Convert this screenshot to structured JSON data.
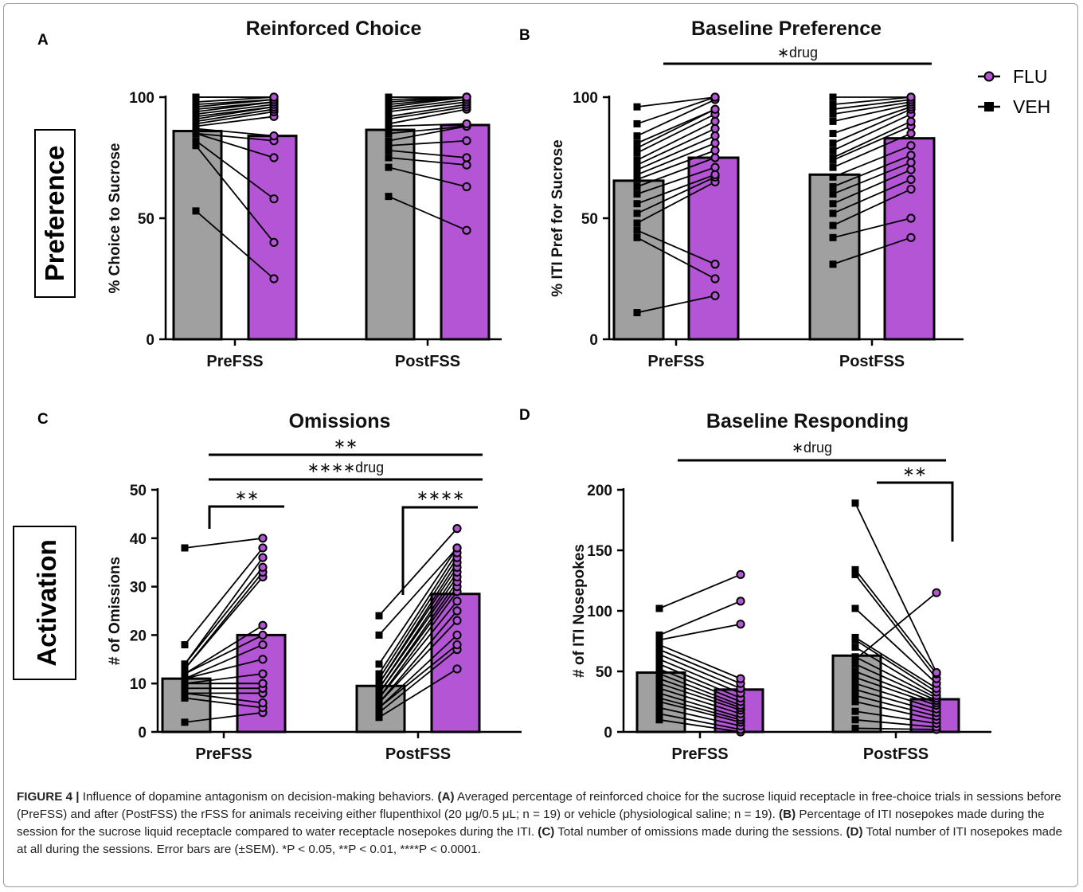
{
  "colors": {
    "veh": "#a0a0a0",
    "flu": "#b455d6",
    "ink": "#000000"
  },
  "row_labels": {
    "top": "Preference",
    "bottom": "Activation"
  },
  "legend": [
    {
      "label": "FLU",
      "marker": "circle",
      "color": "#b455d6"
    },
    {
      "label": "VEH",
      "marker": "square",
      "color": "#000000"
    }
  ],
  "caption": {
    "figure_label": "FIGURE 4 |",
    "lead": " Influence of dopamine antagonism on decision-making behaviors. ",
    "a_label": "(A)",
    "a_text": " Averaged percentage of reinforced choice for the sucrose liquid receptacle in free-choice trials in sessions before (PreFSS) and after (PostFSS) the rFSS for animals receiving either flupenthixol (20 μg/0.5 μL; n = 19) or vehicle (physiological saline; n = 19). ",
    "b_label": "(B)",
    "b_text": " Percentage of ITI nosepokes made during the session for the sucrose liquid receptacle compared to water receptacle nosepokes during the ITI. ",
    "c_label": "(C)",
    "c_text": " Total number of omissions made during the sessions. ",
    "d_label": "(D)",
    "d_text": " Total number of ITI nosepokes made at all during the sessions. Error bars are (±SEM). *P < 0.05, **P < 0.01, ****P < 0.0001."
  },
  "chart_data": [
    {
      "type": "bar",
      "panel": "A",
      "title": "Reinforced Choice",
      "ylabel": "% Choice to Sucrose",
      "categories": [
        "PreFSS",
        "PostFSS"
      ],
      "ylim": [
        0,
        100
      ],
      "yticks": [
        0,
        50,
        100
      ],
      "series": [
        {
          "name": "VEH",
          "values": [
            86,
            86.5
          ]
        },
        {
          "name": "FLU",
          "values": [
            84,
            88.5
          ]
        }
      ],
      "individual": {
        "PreFSS": {
          "VEH": [
            53,
            80,
            82,
            85,
            85,
            87,
            88,
            89,
            90,
            91,
            92,
            93,
            94,
            95,
            96,
            97,
            98,
            100,
            100
          ],
          "FLU": [
            25,
            40,
            58,
            75,
            82,
            84,
            92,
            94,
            95,
            96,
            96,
            97,
            98,
            98,
            99,
            99,
            100,
            100,
            100
          ]
        },
        "PostFSS": {
          "VEH": [
            59,
            71,
            75,
            78,
            80,
            82,
            85,
            88,
            89,
            91,
            92,
            94,
            95,
            96,
            97,
            98,
            99,
            100,
            100
          ],
          "FLU": [
            45,
            63,
            72,
            75,
            82,
            88,
            88,
            89,
            95,
            96,
            97,
            98,
            99,
            100,
            100,
            100,
            100,
            100,
            100
          ]
        }
      },
      "annotations": []
    },
    {
      "type": "bar",
      "panel": "B",
      "title": "Baseline Preference",
      "ylabel": "% ITI Pref for Sucrose",
      "categories": [
        "PreFSS",
        "PostFSS"
      ],
      "ylim": [
        0,
        100
      ],
      "yticks": [
        0,
        50,
        100
      ],
      "series": [
        {
          "name": "VEH",
          "values": [
            65.5,
            68
          ]
        },
        {
          "name": "FLU",
          "values": [
            75,
            83
          ]
        }
      ],
      "individual": {
        "PreFSS": {
          "VEH": [
            11,
            42,
            45,
            48,
            52,
            56,
            60,
            63,
            66,
            68,
            70,
            72,
            74,
            77,
            79,
            81,
            84,
            89,
            96
          ],
          "FLU": [
            18,
            25,
            31,
            65,
            67,
            68,
            71,
            75,
            78,
            81,
            84,
            87,
            90,
            93,
            95,
            95,
            99,
            100,
            100
          ]
        },
        "PostFSS": {
          "VEH": [
            31,
            42,
            47,
            52,
            56,
            60,
            63,
            67,
            71,
            74,
            75,
            78,
            81,
            85,
            90,
            93,
            95,
            97,
            100
          ],
          "FLU": [
            42,
            50,
            62,
            66,
            70,
            73,
            76,
            80,
            85,
            88,
            90,
            93,
            95,
            96,
            97,
            98,
            99,
            100,
            100
          ]
        }
      },
      "annotations": [
        {
          "text": "drug",
          "stars": 1,
          "from": "PreFSS",
          "to": "PostFSS"
        }
      ]
    },
    {
      "type": "bar",
      "panel": "C",
      "title": "Omissions",
      "ylabel": "# of Omissions",
      "categories": [
        "PreFSS",
        "PostFSS"
      ],
      "ylim": [
        0,
        50
      ],
      "yticks": [
        0,
        10,
        20,
        30,
        40,
        50
      ],
      "series": [
        {
          "name": "VEH",
          "values": [
            11,
            9.5
          ]
        },
        {
          "name": "FLU",
          "values": [
            20,
            28.5
          ]
        }
      ],
      "individual": {
        "PreFSS": {
          "VEH": [
            2,
            7,
            8,
            8,
            9,
            9,
            10,
            10,
            10,
            11,
            11,
            12,
            12,
            13,
            13,
            14,
            14,
            18,
            38
          ],
          "FLU": [
            4,
            5,
            6,
            8,
            9,
            9,
            10,
            10,
            12,
            15,
            18,
            20,
            22,
            32,
            33,
            34,
            36,
            38,
            40
          ]
        },
        "PostFSS": {
          "VEH": [
            3,
            4,
            5,
            5,
            6,
            6,
            7,
            7,
            8,
            8,
            9,
            9,
            10,
            10,
            11,
            12,
            14,
            20,
            24
          ],
          "FLU": [
            13,
            17,
            18,
            20,
            23,
            25,
            27,
            29,
            30,
            31,
            32,
            33,
            34,
            35,
            36,
            37,
            38,
            38,
            42
          ]
        }
      },
      "annotations": [
        {
          "text": "",
          "stars": 2,
          "from": "PreFSS",
          "to": "PostFSS"
        },
        {
          "text": "drug",
          "stars": 4,
          "from": "PreFSS",
          "to": "PostFSS"
        },
        {
          "text": "",
          "stars": 2,
          "group": "PreFSS"
        },
        {
          "text": "",
          "stars": 4,
          "group": "PostFSS"
        }
      ]
    },
    {
      "type": "bar",
      "panel": "D",
      "title": "Baseline Responding",
      "ylabel": "# of ITI Nosepokes",
      "categories": [
        "PreFSS",
        "PostFSS"
      ],
      "ylim": [
        0,
        200
      ],
      "yticks": [
        0,
        50,
        100,
        150,
        200
      ],
      "series": [
        {
          "name": "VEH",
          "values": [
            49,
            63
          ]
        },
        {
          "name": "FLU",
          "values": [
            35,
            27
          ]
        }
      ],
      "individual": {
        "PreFSS": {
          "VEH": [
            10,
            15,
            20,
            25,
            28,
            32,
            36,
            40,
            44,
            48,
            52,
            56,
            60,
            64,
            68,
            72,
            76,
            80,
            102
          ],
          "FLU": [
            0,
            2,
            5,
            8,
            10,
            12,
            15,
            18,
            20,
            22,
            25,
            28,
            32,
            36,
            40,
            44,
            89,
            108,
            130
          ]
        },
        "PostFSS": {
          "VEH": [
            3,
            10,
            17,
            25,
            30,
            35,
            40,
            45,
            50,
            56,
            62,
            70,
            76,
            78,
            102,
            130,
            134,
            189,
            60
          ],
          "FLU": [
            2,
            4,
            7,
            10,
            13,
            16,
            19,
            22,
            24,
            26,
            28,
            30,
            33,
            36,
            40,
            44,
            48,
            49,
            115
          ]
        }
      },
      "annotations": [
        {
          "text": "drug",
          "stars": 1,
          "from": "PreFSS",
          "to": "PostFSS"
        },
        {
          "text": "",
          "stars": 2,
          "group": "PostFSS"
        }
      ]
    }
  ]
}
